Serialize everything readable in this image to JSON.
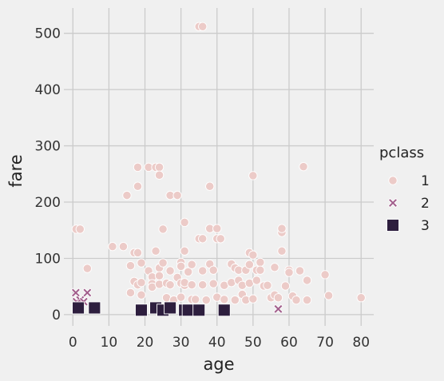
{
  "chart_data": {
    "type": "scatter",
    "title": "",
    "xlabel": "age",
    "ylabel": "fare",
    "xlim": [
      -2.5,
      83.5
    ],
    "ylim": [
      -20,
      545
    ],
    "xticks": [
      0,
      10,
      20,
      30,
      40,
      50,
      60,
      70,
      80
    ],
    "yticks": [
      0,
      100,
      200,
      300,
      400,
      500
    ],
    "grid": true,
    "legend": {
      "title": "pclass",
      "position": "right",
      "entries": [
        "1",
        "2",
        "3"
      ]
    },
    "series": [
      {
        "name": "1",
        "marker": "circle",
        "color": "#eccbc8",
        "points": [
          [
            0.9,
            152
          ],
          [
            2,
            152
          ],
          [
            4,
            82
          ],
          [
            11,
            121
          ],
          [
            14,
            121
          ],
          [
            15,
            212
          ],
          [
            16,
            39
          ],
          [
            16,
            87
          ],
          [
            17,
            59
          ],
          [
            17,
            110
          ],
          [
            18,
            262
          ],
          [
            18,
            228
          ],
          [
            18,
            110
          ],
          [
            18,
            53
          ],
          [
            19,
            92
          ],
          [
            19,
            57
          ],
          [
            19,
            35
          ],
          [
            21,
            262
          ],
          [
            21,
            78
          ],
          [
            22,
            67
          ],
          [
            22,
            55
          ],
          [
            22,
            49
          ],
          [
            23,
            262
          ],
          [
            23,
            113
          ],
          [
            24,
            262
          ],
          [
            24,
            248
          ],
          [
            24,
            83
          ],
          [
            24,
            69
          ],
          [
            24,
            54
          ],
          [
            25,
            152
          ],
          [
            25,
            92
          ],
          [
            26,
            30
          ],
          [
            26,
            56
          ],
          [
            27,
            212
          ],
          [
            27,
            78
          ],
          [
            27,
            53
          ],
          [
            28,
            26
          ],
          [
            29,
            212
          ],
          [
            29,
            66
          ],
          [
            30,
            93
          ],
          [
            30,
            86
          ],
          [
            30,
            56
          ],
          [
            30,
            31
          ],
          [
            31,
            164
          ],
          [
            31,
            113
          ],
          [
            31,
            52
          ],
          [
            31,
            57
          ],
          [
            32,
            76
          ],
          [
            33,
            89
          ],
          [
            33,
            53
          ],
          [
            33,
            27
          ],
          [
            34,
            27
          ],
          [
            35,
            512
          ],
          [
            35,
            135
          ],
          [
            36,
            512
          ],
          [
            36,
            135
          ],
          [
            36,
            78
          ],
          [
            36,
            53
          ],
          [
            37,
            26
          ],
          [
            38,
            228
          ],
          [
            38,
            153
          ],
          [
            38,
            90
          ],
          [
            39,
            79
          ],
          [
            39,
            55
          ],
          [
            40,
            153
          ],
          [
            40,
            135
          ],
          [
            40,
            31
          ],
          [
            41,
            135
          ],
          [
            42,
            52
          ],
          [
            42,
            27
          ],
          [
            44,
            90
          ],
          [
            44,
            57
          ],
          [
            45,
            26
          ],
          [
            45,
            83
          ],
          [
            46,
            79
          ],
          [
            46,
            61
          ],
          [
            47,
            52
          ],
          [
            47,
            36
          ],
          [
            48,
            79
          ],
          [
            48,
            26
          ],
          [
            49,
            110
          ],
          [
            49,
            89
          ],
          [
            49,
            56
          ],
          [
            50,
            247
          ],
          [
            50,
            106
          ],
          [
            50,
            28
          ],
          [
            51,
            79
          ],
          [
            51,
            61
          ],
          [
            52,
            93
          ],
          [
            52,
            79
          ],
          [
            53,
            51
          ],
          [
            54,
            52
          ],
          [
            55,
            30
          ],
          [
            56,
            84
          ],
          [
            56,
            35
          ],
          [
            57,
            30
          ],
          [
            58,
            146
          ],
          [
            58,
            153
          ],
          [
            58,
            113
          ],
          [
            59,
            51
          ],
          [
            60,
            79
          ],
          [
            60,
            75
          ],
          [
            61,
            33
          ],
          [
            62,
            26
          ],
          [
            63,
            78
          ],
          [
            64,
            263
          ],
          [
            65,
            61
          ],
          [
            65,
            26
          ],
          [
            70,
            71
          ],
          [
            71,
            34
          ],
          [
            80,
            30
          ]
        ]
      },
      {
        "name": "2",
        "marker": "x",
        "color": "#a25f8c",
        "points": [
          [
            0.8,
            39
          ],
          [
            1,
            23
          ],
          [
            2,
            26
          ],
          [
            3,
            23
          ],
          [
            4,
            39
          ],
          [
            23,
            14
          ],
          [
            24,
            13
          ],
          [
            35,
            10
          ],
          [
            57,
            10
          ]
        ]
      },
      {
        "name": "3",
        "marker": "square",
        "color": "#2d1e3e",
        "points": [
          [
            1.5,
            12
          ],
          [
            6,
            12
          ],
          [
            19,
            8
          ],
          [
            23,
            12
          ],
          [
            25,
            8
          ],
          [
            27,
            12
          ],
          [
            31,
            8
          ],
          [
            32,
            8
          ],
          [
            35,
            8
          ],
          [
            42,
            8
          ]
        ]
      }
    ]
  }
}
